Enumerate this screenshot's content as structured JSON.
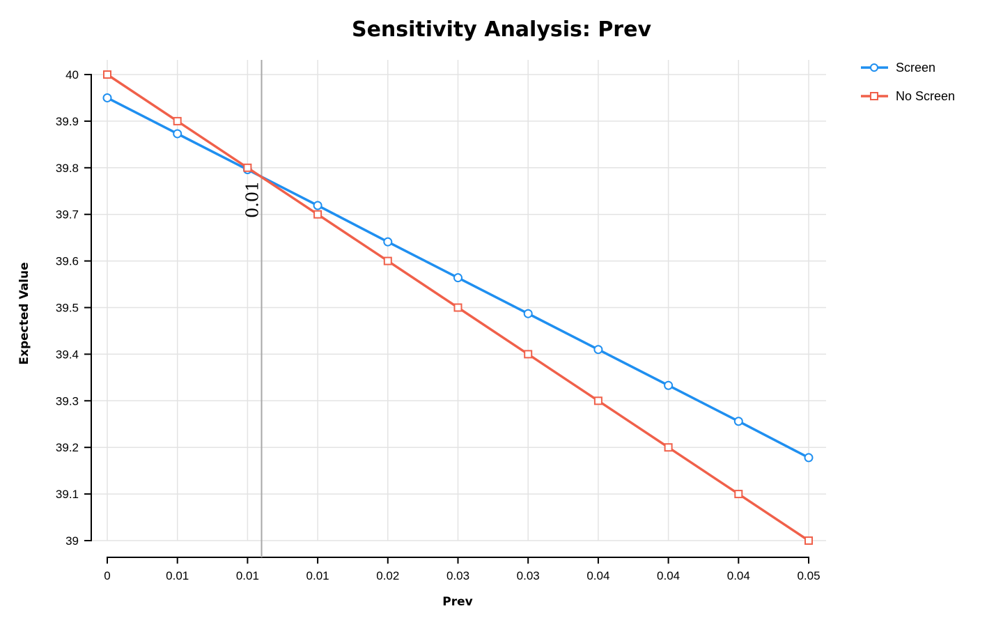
{
  "chart_data": {
    "type": "line",
    "title": "Sensitivity Analysis: Prev",
    "xlabel": "Prev",
    "ylabel": "Expected Value",
    "x_tick_labels": [
      "0",
      "0.01",
      "0.01",
      "0.01",
      "0.02",
      "0.03",
      "0.03",
      "0.04",
      "0.04",
      "0.04",
      "0.05"
    ],
    "x": [
      0,
      0.005,
      0.01,
      0.015,
      0.02,
      0.025,
      0.03,
      0.035,
      0.04,
      0.045,
      0.05
    ],
    "xlim": [
      0,
      0.05
    ],
    "ylim": [
      39,
      40
    ],
    "y_ticks": [
      39,
      39.1,
      39.2,
      39.3,
      39.4,
      39.5,
      39.6,
      39.7,
      39.8,
      39.9,
      40
    ],
    "y_tick_labels": [
      "39",
      "39.1",
      "39.2",
      "39.3",
      "39.4",
      "39.5",
      "39.6",
      "39.7",
      "39.8",
      "39.9",
      "40"
    ],
    "grid": true,
    "legend_position": "top-right, outside plot",
    "series": [
      {
        "name": "Screen",
        "color": "#1f8ff0",
        "marker": "circle",
        "values": [
          39.95,
          39.873,
          39.796,
          39.719,
          39.641,
          39.564,
          39.487,
          39.41,
          39.333,
          39.256,
          39.178
        ]
      },
      {
        "name": "No Screen",
        "color": "#f0604a",
        "marker": "square",
        "values": [
          40.0,
          39.9,
          39.8,
          39.7,
          39.6,
          39.5,
          39.4,
          39.3,
          39.2,
          39.1,
          39.0
        ]
      }
    ],
    "threshold": {
      "x": 0.011,
      "label": "0.01"
    }
  }
}
